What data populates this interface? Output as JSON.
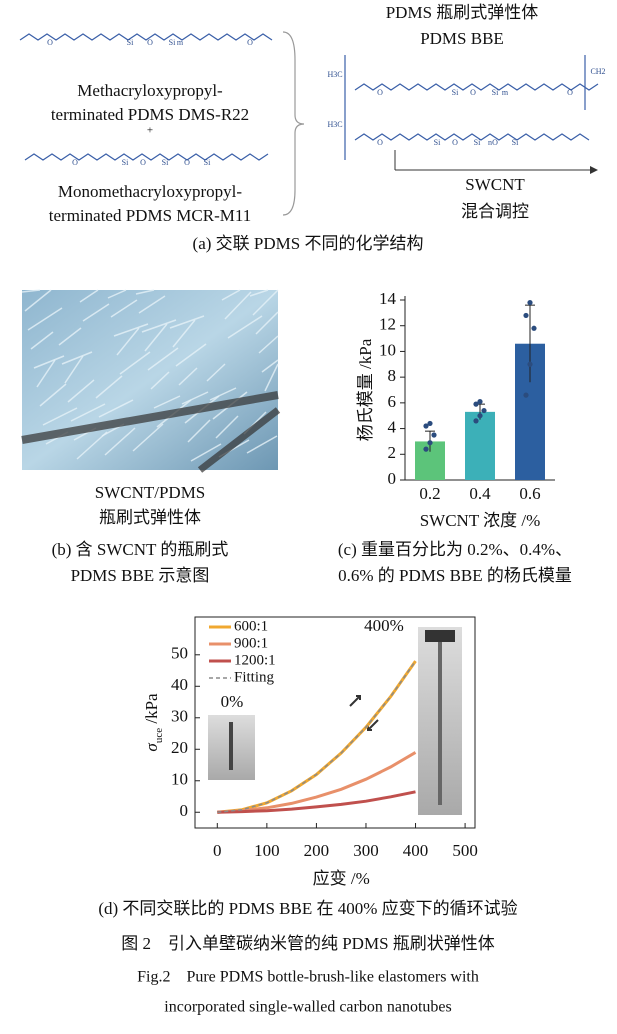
{
  "panel_a": {
    "title": [
      "PDMS 瓶刷式弹性体",
      "PDMS BBE"
    ],
    "monomer_1": [
      "Methacryloxypropyl-",
      "terminated PDMS DMS-R22"
    ],
    "plus": "+",
    "monomer_2": [
      "Monomethacryloxypropyl-",
      "terminated PDMS MCR-M11"
    ],
    "arrow_label": [
      "SWCNT",
      "混合调控"
    ],
    "atoms": {
      "si": "Si",
      "o": "O",
      "m": "m",
      "n": "n",
      "ch2": "CH2",
      "h3c": "H3C"
    },
    "caption": "(a) 交联 PDMS 不同的化学结构"
  },
  "panel_b": {
    "photo_label": [
      "SWCNT/PDMS",
      "瓶刷式弹性体"
    ],
    "caption": [
      "(b) 含 SWCNT 的瓶刷式",
      "PDMS BBE 示意图"
    ]
  },
  "panel_c": {
    "caption": [
      "(c) 重量百分比为 0.2%、0.4%、",
      "0.6% 的 PDMS BBE 的杨氏模量"
    ]
  },
  "panel_d": {
    "caption": "(d) 不同交联比的 PDMS BBE 在 400% 应变下的循环试验"
  },
  "chart_data": [
    {
      "type": "bar",
      "categories": [
        "0.2",
        "0.4",
        "0.6"
      ],
      "values": [
        3.0,
        5.3,
        10.6
      ],
      "errors": [
        0.8,
        0.6,
        3.0
      ],
      "points": [
        [
          2.4,
          2.9,
          3.5,
          4.2,
          4.4
        ],
        [
          4.6,
          5.0,
          5.4,
          5.9,
          6.1
        ],
        [
          6.6,
          9.0,
          11.8,
          12.8,
          13.8
        ]
      ],
      "colors": [
        "#5cc47a",
        "#3cb0b8",
        "#2c5fa0"
      ],
      "ylim": [
        0,
        14
      ],
      "yticks": [
        0,
        2,
        4,
        6,
        8,
        10,
        12,
        14
      ],
      "ylabel": "杨氏模量 /kPa",
      "xlabel": "SWCNT 浓度 /%"
    },
    {
      "type": "line",
      "x": [
        0,
        50,
        100,
        150,
        200,
        250,
        300,
        350,
        400
      ],
      "series": [
        {
          "name": "600:1",
          "color": "#f0a830",
          "values": [
            0,
            0.8,
            3,
            6.8,
            12,
            18.8,
            27,
            36.8,
            48
          ]
        },
        {
          "name": "900:1",
          "color": "#e8906a",
          "values": [
            0,
            0.5,
            1.4,
            2.8,
            4.8,
            7.3,
            10.5,
            14.4,
            19
          ]
        },
        {
          "name": "1200:1",
          "color": "#c0504d",
          "values": [
            0,
            0.2,
            0.5,
            1,
            1.7,
            2.5,
            3.5,
            4.9,
            6.5
          ]
        },
        {
          "name": "Fitting",
          "color": "#8a8a8a",
          "linestyle": "dashed",
          "values": [
            0,
            0.8,
            3,
            6.8,
            12,
            18.8,
            27,
            36.8,
            48
          ]
        }
      ],
      "xlim": [
        -45,
        520
      ],
      "ylim": [
        -5,
        62
      ],
      "xticks": [
        0,
        100,
        200,
        300,
        400,
        500
      ],
      "yticks": [
        0,
        10,
        20,
        30,
        40,
        50
      ],
      "ylabel": {
        "symbol": "σ",
        "subscript": "uce",
        "unit": " /kPa"
      },
      "xlabel": "应变 /%",
      "annotations": [
        "400%",
        "0%"
      ],
      "legend": "upper-left"
    }
  ],
  "figure_caption": {
    "cn": "图 2　引入单壁碳纳米管的纯 PDMS 瓶刷状弹性体",
    "en": [
      "Fig.2　Pure PDMS bottle-brush-like elastomers with",
      "incorporated single-walled carbon nanotubes"
    ]
  }
}
